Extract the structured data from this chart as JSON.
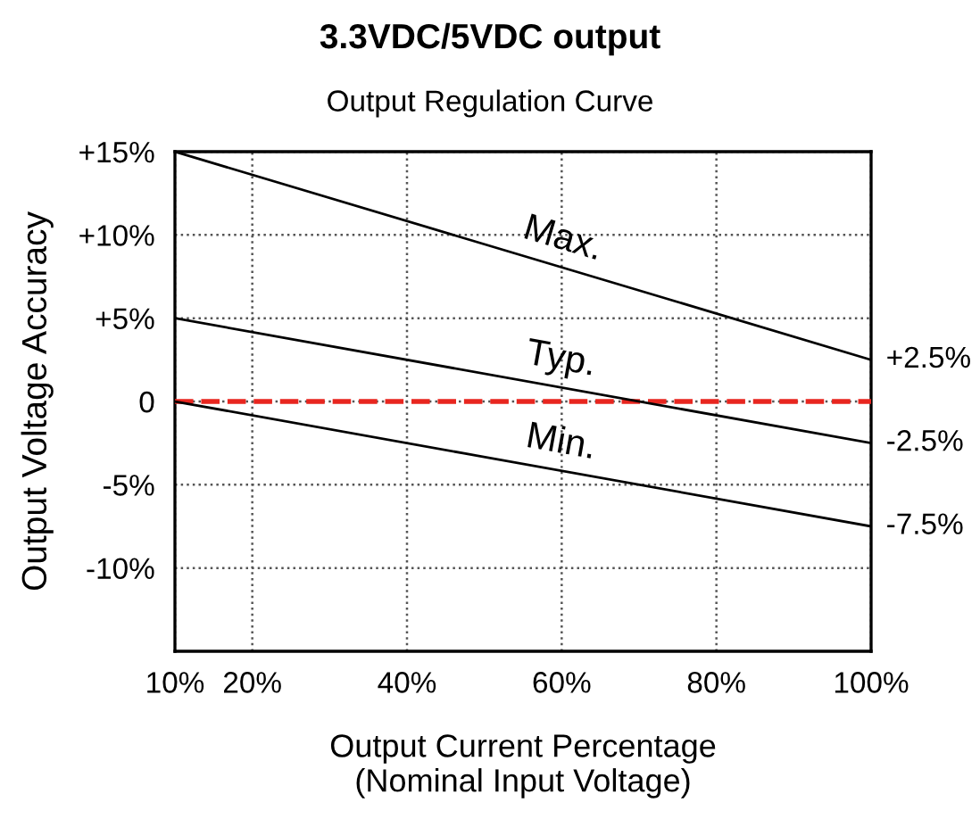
{
  "chart_data": {
    "type": "line",
    "title": "3.3VDC/5VDC output",
    "subtitle": "Output Regulation Curve",
    "xlabel": "Output Current Percentage\n(Nominal Input Voltage)",
    "ylabel": "Output Voltage Accuracy",
    "x": [
      10,
      100
    ],
    "series": [
      {
        "name": "Max.",
        "color": "#000000",
        "values": [
          15,
          2.5
        ],
        "value_labels": [
          null,
          "+2.5%"
        ]
      },
      {
        "name": "Typ.",
        "color": "#000000",
        "values": [
          5,
          -2.5
        ],
        "value_labels": [
          null,
          "-2.5%"
        ]
      },
      {
        "name": "Min.",
        "color": "#000000",
        "values": [
          0,
          -7.5
        ],
        "value_labels": [
          null,
          "-7.5%"
        ]
      }
    ],
    "xlim": [
      10,
      100
    ],
    "ylim": [
      -15,
      15
    ],
    "xticks": [
      {
        "value": 10,
        "label": "10%"
      },
      {
        "value": 20,
        "label": "20%"
      },
      {
        "value": 40,
        "label": "40%"
      },
      {
        "value": 60,
        "label": "60%"
      },
      {
        "value": 80,
        "label": "80%"
      },
      {
        "value": 100,
        "label": "100%"
      }
    ],
    "yticks": [
      {
        "value": -10,
        "label": "-10%"
      },
      {
        "value": -5,
        "label": "-5%"
      },
      {
        "value": 0,
        "label": "0"
      },
      {
        "value": 5,
        "label": "+5%"
      },
      {
        "value": 10,
        "label": "+10%"
      },
      {
        "value": 15,
        "label": "+15%"
      }
    ],
    "ref_lines": [
      {
        "axis": "y",
        "value": 0,
        "label": null,
        "color": "#e8261f",
        "line_style": "dashed"
      }
    ],
    "grid": true,
    "marker": "none",
    "line_style": "solid"
  }
}
